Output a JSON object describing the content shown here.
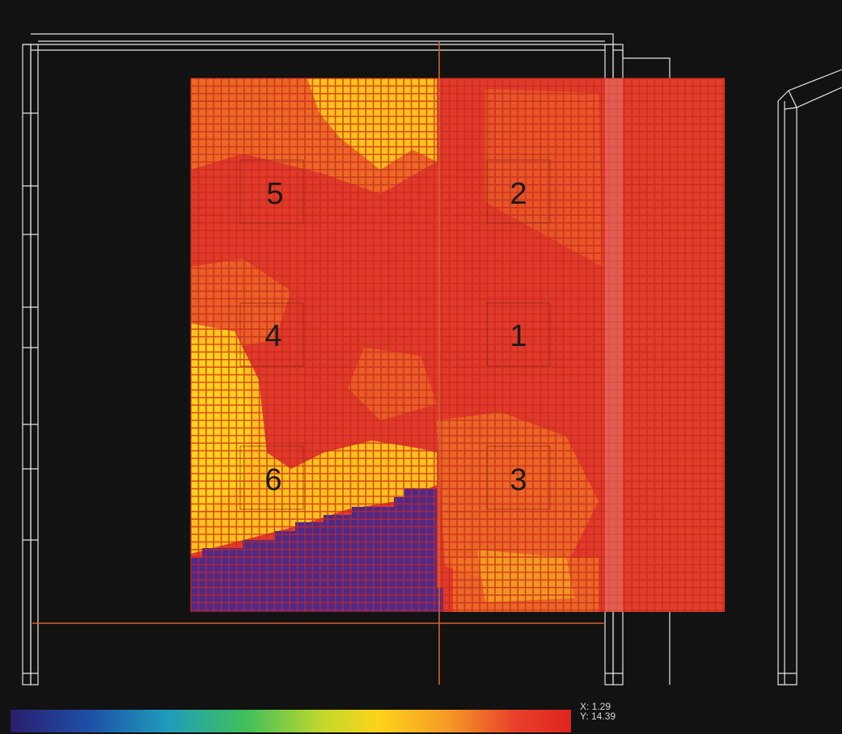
{
  "view": {
    "zones": [
      {
        "id": "5",
        "label": "5"
      },
      {
        "id": "2",
        "label": "2"
      },
      {
        "id": "4",
        "label": "4"
      },
      {
        "id": "1",
        "label": "1"
      },
      {
        "id": "6",
        "label": "6"
      },
      {
        "id": "3",
        "label": "3"
      }
    ],
    "readout": {
      "x_text": "X: 1.29",
      "y_text": "Y: 14.39"
    }
  },
  "colors": {
    "background": "#121212",
    "outline": "#e6e6e6",
    "crosshair": "#d2622c",
    "heat_base": "#e03a2a",
    "heat_warm": "#f07a24",
    "heat_hot": "#ffd21a",
    "heat_cold": "#4b2a8c",
    "colormap": [
      "#2b1e6e",
      "#1e4fa8",
      "#1f9cbc",
      "#3fbf5a",
      "#c4d92a",
      "#ffd21a",
      "#f59a26",
      "#e8402a",
      "#e0241e"
    ]
  }
}
